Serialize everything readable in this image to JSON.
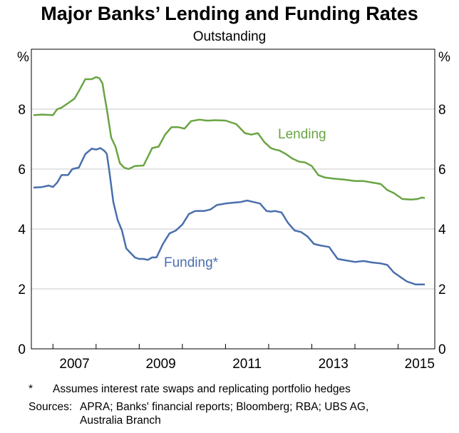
{
  "chart_data": {
    "type": "line",
    "title": "Major Banks’ Lending and Funding Rates",
    "subtitle": "Outstanding",
    "y_unit_left": "%",
    "y_unit_right": "%",
    "ylim": [
      0,
      10
    ],
    "yticks": [
      "0",
      "2",
      "4",
      "6",
      "8"
    ],
    "xlim": [
      2006.5,
      2015.85
    ],
    "xticks": [
      "2007",
      "2009",
      "2011",
      "2013",
      "2015"
    ],
    "grid": true,
    "series": [
      {
        "name": "Lending",
        "color": "#6aa443",
        "x": [
          2006.55,
          2006.75,
          2007.0,
          2007.1,
          2007.2,
          2007.35,
          2007.5,
          2007.6,
          2007.75,
          2007.9,
          2008.0,
          2008.08,
          2008.15,
          2008.2,
          2008.25,
          2008.35,
          2008.45,
          2008.55,
          2008.65,
          2008.75,
          2008.9,
          2009.1,
          2009.3,
          2009.45,
          2009.6,
          2009.75,
          2009.9,
          2010.05,
          2010.2,
          2010.4,
          2010.55,
          2010.65,
          2010.75,
          2011.0,
          2011.25,
          2011.45,
          2011.6,
          2011.75,
          2011.9,
          2012.05,
          2012.15,
          2012.25,
          2012.4,
          2012.55,
          2012.7,
          2012.85,
          2013.0,
          2013.15,
          2013.3,
          2013.5,
          2013.75,
          2014.0,
          2014.2,
          2014.4,
          2014.6,
          2014.75,
          2014.9,
          2015.1,
          2015.3,
          2015.45,
          2015.55,
          2015.62
        ],
        "values": [
          7.8,
          7.82,
          7.8,
          8.0,
          8.05,
          8.2,
          8.35,
          8.6,
          9.0,
          9.0,
          9.07,
          9.03,
          8.85,
          8.4,
          8.0,
          7.05,
          6.75,
          6.2,
          6.05,
          6.0,
          6.1,
          6.12,
          6.7,
          6.75,
          7.15,
          7.4,
          7.4,
          7.35,
          7.6,
          7.65,
          7.62,
          7.62,
          7.63,
          7.62,
          7.5,
          7.2,
          7.15,
          7.2,
          6.9,
          6.7,
          6.65,
          6.62,
          6.5,
          6.35,
          6.25,
          6.22,
          6.1,
          5.8,
          5.72,
          5.68,
          5.65,
          5.6,
          5.6,
          5.55,
          5.5,
          5.3,
          5.2,
          5.0,
          4.98,
          5.0,
          5.05,
          5.03
        ]
      },
      {
        "name": "Funding*",
        "color": "#4a6fad",
        "x": [
          2006.55,
          2006.75,
          2006.9,
          2007.0,
          2007.1,
          2007.2,
          2007.35,
          2007.45,
          2007.6,
          2007.75,
          2007.9,
          2008.0,
          2008.1,
          2008.2,
          2008.25,
          2008.3,
          2008.4,
          2008.5,
          2008.6,
          2008.7,
          2008.8,
          2008.9,
          2009.0,
          2009.1,
          2009.2,
          2009.3,
          2009.4,
          2009.55,
          2009.7,
          2009.85,
          2010.0,
          2010.15,
          2010.3,
          2010.5,
          2010.65,
          2010.8,
          2011.0,
          2011.2,
          2011.35,
          2011.5,
          2011.65,
          2011.8,
          2011.95,
          2012.05,
          2012.15,
          2012.3,
          2012.45,
          2012.6,
          2012.75,
          2012.9,
          2013.05,
          2013.2,
          2013.4,
          2013.6,
          2013.8,
          2014.0,
          2014.2,
          2014.4,
          2014.6,
          2014.75,
          2014.9,
          2015.05,
          2015.2,
          2015.4,
          2015.62
        ],
        "values": [
          5.38,
          5.4,
          5.45,
          5.4,
          5.55,
          5.8,
          5.8,
          6.0,
          6.05,
          6.5,
          6.68,
          6.65,
          6.7,
          6.6,
          6.5,
          6.0,
          4.9,
          4.3,
          3.95,
          3.35,
          3.2,
          3.05,
          3.0,
          3.0,
          2.97,
          3.05,
          3.05,
          3.5,
          3.85,
          3.95,
          4.15,
          4.5,
          4.6,
          4.6,
          4.65,
          4.8,
          4.85,
          4.88,
          4.9,
          4.95,
          4.9,
          4.85,
          4.6,
          4.58,
          4.6,
          4.55,
          4.2,
          3.95,
          3.9,
          3.75,
          3.5,
          3.45,
          3.4,
          3.0,
          2.95,
          2.9,
          2.93,
          2.88,
          2.85,
          2.8,
          2.55,
          2.4,
          2.25,
          2.15,
          2.15
        ]
      }
    ]
  },
  "footnotes": [
    {
      "key": "*",
      "text": "Assumes interest rate swaps and replicating portfolio hedges"
    },
    {
      "key": "Sources:",
      "text": "APRA; Banks' financial reports; Bloomberg; RBA; UBS AG, Australia Branch"
    }
  ]
}
